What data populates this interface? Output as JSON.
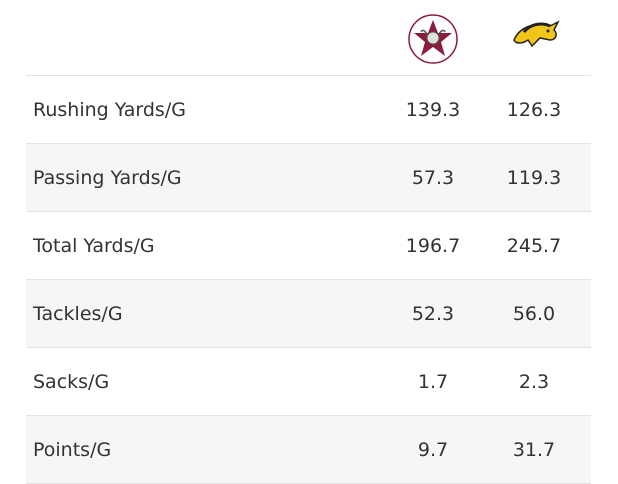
{
  "table": {
    "rows": [
      [
        "Rushing Yards/G",
        "139.3",
        "126.3"
      ],
      [
        "Passing Yards/G",
        "57.3",
        "119.3"
      ],
      [
        "Total Yards/G",
        "196.7",
        "245.7"
      ],
      [
        "Tackles/G",
        "52.3",
        "56.0"
      ],
      [
        "Sacks/G",
        "1.7",
        "2.3"
      ],
      [
        "Points/G",
        "9.7",
        "31.7"
      ]
    ]
  }
}
